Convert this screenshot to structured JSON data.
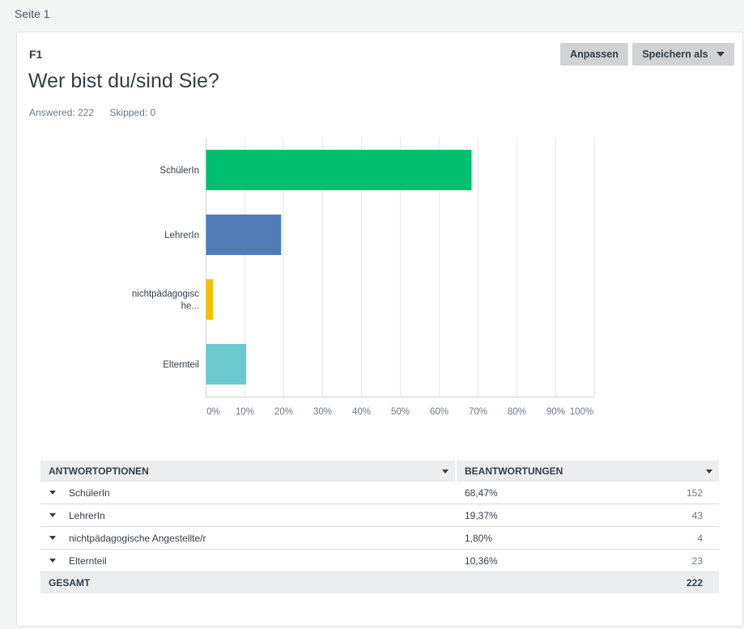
{
  "page_label": "Seite 1",
  "question": {
    "id": "F1",
    "title": "Wer bist du/sind Sie?",
    "answered": "Answered: 222",
    "skipped": "Skipped: 0"
  },
  "toolbar": {
    "customize_label": "Anpassen",
    "save_as_label": "Speichern als"
  },
  "chart_data": {
    "type": "bar",
    "orientation": "horizontal",
    "categories": [
      "SchülerIn",
      "LehrerIn",
      "nichtpädagogische Angestellte/r",
      "Elternteil"
    ],
    "category_display_labels": [
      [
        "SchülerIn"
      ],
      [
        "LehrerIn"
      ],
      [
        "nichtpädagogisc",
        "he..."
      ],
      [
        "Elternteil"
      ]
    ],
    "values": [
      68.47,
      19.37,
      1.8,
      10.36
    ],
    "colors": [
      "#00bf6f",
      "#507cb6",
      "#f9be00",
      "#6bc8cd"
    ],
    "xlim": [
      0,
      100
    ],
    "xticks": [
      "0%",
      "10%",
      "20%",
      "30%",
      "40%",
      "50%",
      "60%",
      "70%",
      "80%",
      "90%",
      "100%"
    ],
    "grid": true,
    "title": "",
    "xlabel": "",
    "ylabel": ""
  },
  "table": {
    "headers": [
      "ANTWORTOPTIONEN",
      "BEANTWORTUNGEN"
    ],
    "rows": [
      {
        "label": "SchülerIn",
        "percent": "68,47%",
        "count": "152"
      },
      {
        "label": "LehrerIn",
        "percent": "19,37%",
        "count": "43"
      },
      {
        "label": "nichtpädagogische Angestellte/r",
        "percent": "1,80%",
        "count": "4"
      },
      {
        "label": "Elternteil",
        "percent": "10,36%",
        "count": "23"
      }
    ],
    "total_label": "GESAMT",
    "total_count": "222"
  }
}
